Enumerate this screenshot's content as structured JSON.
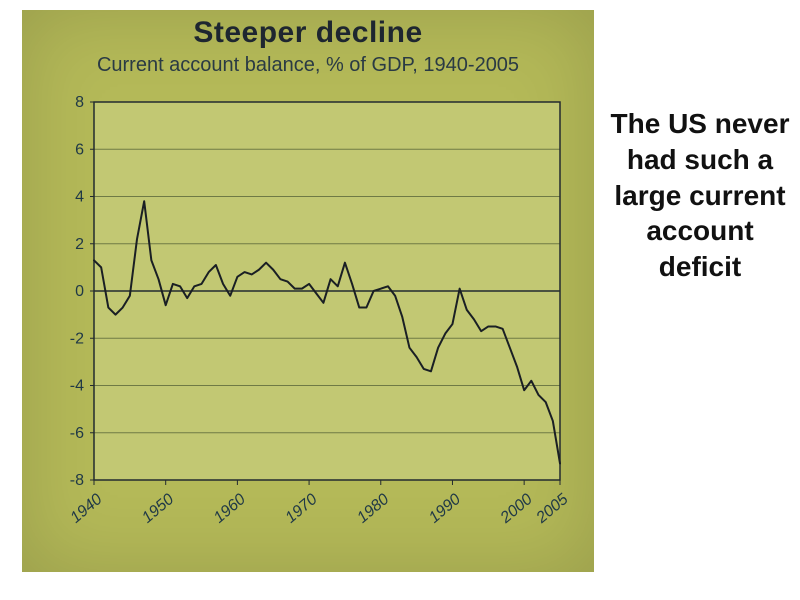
{
  "chart": {
    "type": "line",
    "title": "Steeper decline",
    "title_fontsize": 30,
    "title_color": "#1e2630",
    "subtitle": "Current account balance, % of GDP, 1940-2005",
    "subtitle_fontsize": 20,
    "subtitle_color": "#2a3a44",
    "panel_background": "#b4b958",
    "plot_background": "#c2c873",
    "plot_border_color": "#232a2f",
    "plot_border_width": 1.5,
    "grid_color": "#6f7a45",
    "grid_width": 1,
    "zero_line_color": "#232a2f",
    "zero_line_width": 1.6,
    "series_color": "#1a1f24",
    "series_width": 2,
    "axis_label_color": "#1f3846",
    "axis_label_fontsize": 16,
    "x": {
      "lim": [
        1940,
        2005
      ],
      "ticks": [
        1940,
        1950,
        1960,
        1970,
        1980,
        1990,
        2000,
        2005
      ]
    },
    "y": {
      "lim": [
        -8,
        8
      ],
      "ticks": [
        -8,
        -6,
        -4,
        -2,
        0,
        2,
        4,
        6,
        8
      ]
    },
    "series": [
      {
        "x": 1940,
        "y": 1.3
      },
      {
        "x": 1941,
        "y": 1.0
      },
      {
        "x": 1942,
        "y": -0.7
      },
      {
        "x": 1943,
        "y": -1.0
      },
      {
        "x": 1944,
        "y": -0.7
      },
      {
        "x": 1945,
        "y": -0.2
      },
      {
        "x": 1946,
        "y": 2.2
      },
      {
        "x": 1947,
        "y": 3.8
      },
      {
        "x": 1948,
        "y": 1.3
      },
      {
        "x": 1949,
        "y": 0.5
      },
      {
        "x": 1950,
        "y": -0.6
      },
      {
        "x": 1951,
        "y": 0.3
      },
      {
        "x": 1952,
        "y": 0.2
      },
      {
        "x": 1953,
        "y": -0.3
      },
      {
        "x": 1954,
        "y": 0.2
      },
      {
        "x": 1955,
        "y": 0.3
      },
      {
        "x": 1956,
        "y": 0.8
      },
      {
        "x": 1957,
        "y": 1.1
      },
      {
        "x": 1958,
        "y": 0.3
      },
      {
        "x": 1959,
        "y": -0.2
      },
      {
        "x": 1960,
        "y": 0.6
      },
      {
        "x": 1961,
        "y": 0.8
      },
      {
        "x": 1962,
        "y": 0.7
      },
      {
        "x": 1963,
        "y": 0.9
      },
      {
        "x": 1964,
        "y": 1.2
      },
      {
        "x": 1965,
        "y": 0.9
      },
      {
        "x": 1966,
        "y": 0.5
      },
      {
        "x": 1967,
        "y": 0.4
      },
      {
        "x": 1968,
        "y": 0.1
      },
      {
        "x": 1969,
        "y": 0.1
      },
      {
        "x": 1970,
        "y": 0.3
      },
      {
        "x": 1971,
        "y": -0.1
      },
      {
        "x": 1972,
        "y": -0.5
      },
      {
        "x": 1973,
        "y": 0.5
      },
      {
        "x": 1974,
        "y": 0.2
      },
      {
        "x": 1975,
        "y": 1.2
      },
      {
        "x": 1976,
        "y": 0.3
      },
      {
        "x": 1977,
        "y": -0.7
      },
      {
        "x": 1978,
        "y": -0.7
      },
      {
        "x": 1979,
        "y": 0.0
      },
      {
        "x": 1980,
        "y": 0.1
      },
      {
        "x": 1981,
        "y": 0.2
      },
      {
        "x": 1982,
        "y": -0.2
      },
      {
        "x": 1983,
        "y": -1.1
      },
      {
        "x": 1984,
        "y": -2.4
      },
      {
        "x": 1985,
        "y": -2.8
      },
      {
        "x": 1986,
        "y": -3.3
      },
      {
        "x": 1987,
        "y": -3.4
      },
      {
        "x": 1988,
        "y": -2.4
      },
      {
        "x": 1989,
        "y": -1.8
      },
      {
        "x": 1990,
        "y": -1.4
      },
      {
        "x": 1991,
        "y": 0.1
      },
      {
        "x": 1992,
        "y": -0.8
      },
      {
        "x": 1993,
        "y": -1.2
      },
      {
        "x": 1994,
        "y": -1.7
      },
      {
        "x": 1995,
        "y": -1.5
      },
      {
        "x": 1996,
        "y": -1.5
      },
      {
        "x": 1997,
        "y": -1.6
      },
      {
        "x": 1998,
        "y": -2.4
      },
      {
        "x": 1999,
        "y": -3.2
      },
      {
        "x": 2000,
        "y": -4.2
      },
      {
        "x": 2001,
        "y": -3.8
      },
      {
        "x": 2002,
        "y": -4.4
      },
      {
        "x": 2003,
        "y": -4.7
      },
      {
        "x": 2004,
        "y": -5.5
      },
      {
        "x": 2005,
        "y": -7.3
      }
    ]
  },
  "commentary": {
    "text": "The US never had such a large current account deficit",
    "fontsize": 28,
    "color": "#111111"
  }
}
